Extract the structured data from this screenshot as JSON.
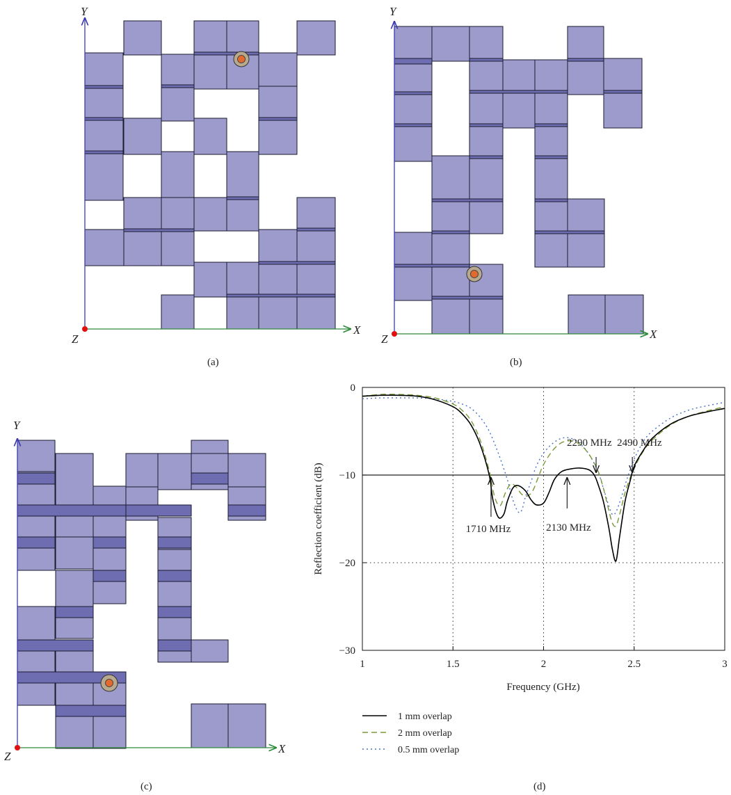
{
  "figure": {
    "panels": [
      {
        "id": "a",
        "caption": "(a)",
        "axis_x": "X",
        "axis_y": "Y",
        "axis_z": "Z"
      },
      {
        "id": "b",
        "caption": "(b)",
        "axis_x": "X",
        "axis_y": "Y",
        "axis_z": "Z"
      },
      {
        "id": "c",
        "caption": "(c)",
        "axis_x": "X",
        "axis_y": "Y",
        "axis_z": "Z"
      },
      {
        "id": "d",
        "caption": "(d)"
      }
    ],
    "colors": {
      "patch_fill": "#9d9bcc",
      "overlap_fill": "#6f6db2",
      "patch_stroke": "#1a1a2e",
      "x_axis": "#2e8b3a",
      "y_axis": "#3b3bb0",
      "feed_outer": "#b8a88e",
      "feed_inner": "#e06a30",
      "origin": "#e01010"
    }
  },
  "chart_data": {
    "type": "line",
    "xlabel": "Frequency (GHz)",
    "ylabel": "Reflection coefficient (dB)",
    "xlim": [
      1,
      3
    ],
    "ylim": [
      -30,
      0
    ],
    "xticks": [
      "1",
      "1.5",
      "2",
      "2.5",
      "3"
    ],
    "yticks": [
      "0",
      "−10",
      "−20",
      "−30"
    ],
    "grid": "dotted",
    "series": [
      {
        "name": "1 mm overlap",
        "color": "#000000",
        "dash": "solid",
        "x": [
          1.0,
          1.1,
          1.2,
          1.3,
          1.4,
          1.5,
          1.55,
          1.6,
          1.65,
          1.7,
          1.72,
          1.75,
          1.78,
          1.8,
          1.83,
          1.86,
          1.9,
          1.93,
          1.96,
          2.0,
          2.03,
          2.06,
          2.1,
          2.15,
          2.2,
          2.25,
          2.28,
          2.3,
          2.33,
          2.36,
          2.38,
          2.4,
          2.42,
          2.45,
          2.48,
          2.5,
          2.55,
          2.6,
          2.7,
          2.8,
          2.9,
          3.0
        ],
        "y": [
          -1.0,
          -0.9,
          -0.9,
          -1.0,
          -1.4,
          -2.2,
          -3.0,
          -4.3,
          -6.5,
          -10.0,
          -12.8,
          -14.8,
          -14.5,
          -13.0,
          -11.5,
          -11.2,
          -11.8,
          -12.8,
          -13.4,
          -13.2,
          -12.0,
          -10.5,
          -9.6,
          -9.3,
          -9.2,
          -9.4,
          -10.0,
          -11.0,
          -13.0,
          -16.0,
          -18.5,
          -19.8,
          -17.0,
          -13.0,
          -10.5,
          -9.0,
          -7.2,
          -5.8,
          -4.2,
          -3.3,
          -2.8,
          -2.4
        ]
      },
      {
        "name": "2 mm overlap",
        "color": "#7a9a3a",
        "dash": "8 5",
        "x": [
          1.0,
          1.1,
          1.2,
          1.3,
          1.4,
          1.5,
          1.55,
          1.6,
          1.65,
          1.7,
          1.73,
          1.76,
          1.79,
          1.82,
          1.85,
          1.88,
          1.91,
          1.94,
          1.97,
          2.0,
          2.05,
          2.1,
          2.15,
          2.2,
          2.25,
          2.3,
          2.33,
          2.36,
          2.38,
          2.4,
          2.42,
          2.45,
          2.48,
          2.5,
          2.55,
          2.6,
          2.7,
          2.8,
          2.9,
          3.0
        ],
        "y": [
          -1.0,
          -0.8,
          -0.8,
          -0.9,
          -1.2,
          -1.9,
          -2.6,
          -3.8,
          -6.0,
          -9.5,
          -12.5,
          -13.5,
          -12.0,
          -11.0,
          -11.4,
          -12.2,
          -12.4,
          -11.8,
          -10.3,
          -8.8,
          -7.2,
          -6.3,
          -6.1,
          -6.5,
          -7.6,
          -9.5,
          -11.5,
          -14.0,
          -15.5,
          -15.8,
          -14.5,
          -12.0,
          -10.2,
          -9.2,
          -7.3,
          -6.0,
          -4.3,
          -3.3,
          -2.7,
          -2.2
        ]
      },
      {
        "name": "0.5 mm overlap",
        "color": "#4a6fc8",
        "dash": "2 4",
        "x": [
          1.0,
          1.1,
          1.2,
          1.3,
          1.4,
          1.5,
          1.55,
          1.6,
          1.65,
          1.7,
          1.75,
          1.8,
          1.83,
          1.86,
          1.88,
          1.9,
          1.93,
          1.96,
          2.0,
          2.05,
          2.1,
          2.15,
          2.2,
          2.25,
          2.3,
          2.33,
          2.36,
          2.38,
          2.4,
          2.43,
          2.46,
          2.5,
          2.55,
          2.6,
          2.7,
          2.8,
          2.9,
          3.0
        ],
        "y": [
          -1.3,
          -1.2,
          -1.2,
          -1.2,
          -1.3,
          -1.6,
          -1.9,
          -2.4,
          -3.4,
          -5.0,
          -7.5,
          -10.5,
          -12.8,
          -14.2,
          -14.0,
          -12.5,
          -10.8,
          -9.0,
          -7.5,
          -6.4,
          -5.8,
          -5.8,
          -6.4,
          -7.6,
          -9.6,
          -11.5,
          -13.5,
          -14.5,
          -14.2,
          -12.5,
          -10.5,
          -8.2,
          -6.2,
          -5.0,
          -3.5,
          -2.6,
          -2.1,
          -1.7
        ]
      }
    ],
    "annotations": [
      {
        "text": "1710 MHz",
        "x": 1.71,
        "y": -10.0
      },
      {
        "text": "2130 MHz",
        "x": 2.13,
        "y": -10.0
      },
      {
        "text": "2290 MHz",
        "x": 2.29,
        "y": -10.0
      },
      {
        "text": "2490 MHz",
        "x": 2.49,
        "y": -10.0
      }
    ],
    "legend": "bottom-left-outside"
  }
}
